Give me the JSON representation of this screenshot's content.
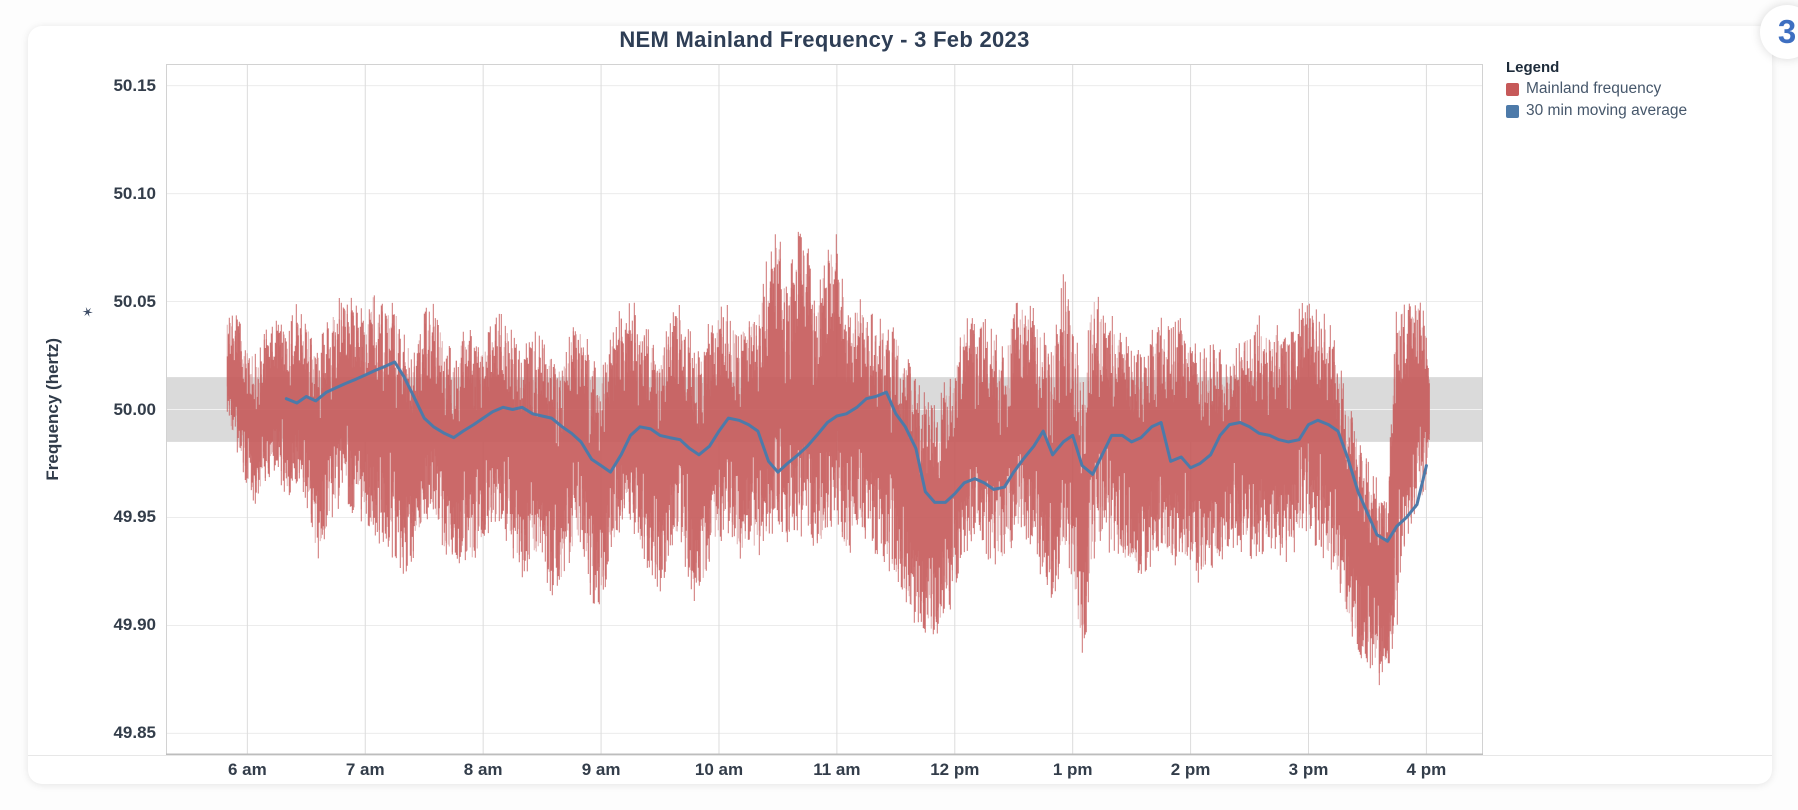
{
  "page": {
    "badge_count": "3"
  },
  "chart_data": {
    "type": "line",
    "title": "NEM Mainland Frequency - 3 Feb 2023",
    "ylabel": "Frequency (hertz)",
    "legend_title": "Legend",
    "legend_position": "right",
    "grid": true,
    "ylim": [
      49.84,
      50.16
    ],
    "xlim_hours": [
      5.31,
      16.48
    ],
    "y_ticks": [
      {
        "label": "50.15",
        "value": 50.15
      },
      {
        "label": "50.10",
        "value": 50.1
      },
      {
        "label": "50.05",
        "value": 50.05
      },
      {
        "label": "50.00",
        "value": 50.0
      },
      {
        "label": "49.95",
        "value": 49.95
      },
      {
        "label": "49.90",
        "value": 49.9
      },
      {
        "label": "49.85",
        "value": 49.85
      }
    ],
    "x_ticks": [
      {
        "label": "6 am",
        "hour": 6
      },
      {
        "label": "7 am",
        "hour": 7
      },
      {
        "label": "8 am",
        "hour": 8
      },
      {
        "label": "9 am",
        "hour": 9
      },
      {
        "label": "10 am",
        "hour": 10
      },
      {
        "label": "11 am",
        "hour": 11
      },
      {
        "label": "12 pm",
        "hour": 12
      },
      {
        "label": "1 pm",
        "hour": 13
      },
      {
        "label": "2 pm",
        "hour": 14
      },
      {
        "label": "3 pm",
        "hour": 15
      },
      {
        "label": "4 pm",
        "hour": 16
      }
    ],
    "reference_band": {
      "y_from": 49.985,
      "y_to": 50.015,
      "color": "#dadada"
    },
    "series": [
      {
        "name": "Mainland frequency",
        "color": "#c65959",
        "style": "noisy-band",
        "sampling": "5-minute envelope triples [hour, max_hz, min_hz]",
        "envelope": [
          [
            5.83,
            50.042,
            49.998
          ],
          [
            5.92,
            50.046,
            49.975
          ],
          [
            6.0,
            50.035,
            49.962
          ],
          [
            6.08,
            50.028,
            49.955
          ],
          [
            6.17,
            50.04,
            49.962
          ],
          [
            6.25,
            50.043,
            49.97
          ],
          [
            6.33,
            50.038,
            49.958
          ],
          [
            6.42,
            50.05,
            49.965
          ],
          [
            6.5,
            50.046,
            49.955
          ],
          [
            6.58,
            50.03,
            49.928
          ],
          [
            6.67,
            50.042,
            49.94
          ],
          [
            6.75,
            50.05,
            49.952
          ],
          [
            6.83,
            50.058,
            49.958
          ],
          [
            6.92,
            50.05,
            49.945
          ],
          [
            7.0,
            50.048,
            49.95
          ],
          [
            7.08,
            50.062,
            49.938
          ],
          [
            7.17,
            50.048,
            49.932
          ],
          [
            7.25,
            50.055,
            49.928
          ],
          [
            7.33,
            50.038,
            49.922
          ],
          [
            7.42,
            50.03,
            49.93
          ],
          [
            7.5,
            50.045,
            49.945
          ],
          [
            7.58,
            50.056,
            49.95
          ],
          [
            7.67,
            50.035,
            49.93
          ],
          [
            7.75,
            50.028,
            49.92
          ],
          [
            7.83,
            50.042,
            49.93
          ],
          [
            7.92,
            50.035,
            49.925
          ],
          [
            8.0,
            50.03,
            49.938
          ],
          [
            8.08,
            50.042,
            49.945
          ],
          [
            8.17,
            50.048,
            49.94
          ],
          [
            8.25,
            50.036,
            49.928
          ],
          [
            8.33,
            50.028,
            49.92
          ],
          [
            8.42,
            50.035,
            49.93
          ],
          [
            8.5,
            50.04,
            49.925
          ],
          [
            8.58,
            50.028,
            49.912
          ],
          [
            8.67,
            50.022,
            49.916
          ],
          [
            8.75,
            50.048,
            49.93
          ],
          [
            8.83,
            50.042,
            49.938
          ],
          [
            8.92,
            50.028,
            49.91
          ],
          [
            9.0,
            50.018,
            49.907
          ],
          [
            9.08,
            50.034,
            49.93
          ],
          [
            9.17,
            50.048,
            49.942
          ],
          [
            9.25,
            50.052,
            49.946
          ],
          [
            9.33,
            50.046,
            49.932
          ],
          [
            9.42,
            50.038,
            49.922
          ],
          [
            9.5,
            50.028,
            49.915
          ],
          [
            9.58,
            50.042,
            49.928
          ],
          [
            9.67,
            50.051,
            49.938
          ],
          [
            9.75,
            50.038,
            49.918
          ],
          [
            9.83,
            50.028,
            49.902
          ],
          [
            9.92,
            50.042,
            49.928
          ],
          [
            10.0,
            50.048,
            49.938
          ],
          [
            10.08,
            50.052,
            49.942
          ],
          [
            10.17,
            50.04,
            49.928
          ],
          [
            10.25,
            50.044,
            49.934
          ],
          [
            10.33,
            50.048,
            49.928
          ],
          [
            10.42,
            50.074,
            49.938
          ],
          [
            10.5,
            50.085,
            49.948
          ],
          [
            10.58,
            50.058,
            49.932
          ],
          [
            10.67,
            50.087,
            49.938
          ],
          [
            10.75,
            50.078,
            49.944
          ],
          [
            10.83,
            50.052,
            49.928
          ],
          [
            10.92,
            50.078,
            49.938
          ],
          [
            11.0,
            50.082,
            49.948
          ],
          [
            11.08,
            50.048,
            49.928
          ],
          [
            11.17,
            50.053,
            49.942
          ],
          [
            11.25,
            50.048,
            49.938
          ],
          [
            11.33,
            50.044,
            49.932
          ],
          [
            11.42,
            50.04,
            49.928
          ],
          [
            11.5,
            50.041,
            49.918
          ],
          [
            11.58,
            50.028,
            49.908
          ],
          [
            11.67,
            50.018,
            49.898
          ],
          [
            11.75,
            50.008,
            49.893
          ],
          [
            11.83,
            50.002,
            49.891
          ],
          [
            11.92,
            50.014,
            49.9
          ],
          [
            12.0,
            50.028,
            49.914
          ],
          [
            12.08,
            50.042,
            49.928
          ],
          [
            12.17,
            50.048,
            49.938
          ],
          [
            12.25,
            50.044,
            49.932
          ],
          [
            12.33,
            50.038,
            49.928
          ],
          [
            12.42,
            50.032,
            49.922
          ],
          [
            12.5,
            50.048,
            49.938
          ],
          [
            12.58,
            50.053,
            49.942
          ],
          [
            12.67,
            50.048,
            49.932
          ],
          [
            12.75,
            50.038,
            49.918
          ],
          [
            12.83,
            50.032,
            49.909
          ],
          [
            12.92,
            50.063,
            49.928
          ],
          [
            13.0,
            50.048,
            49.918
          ],
          [
            13.08,
            50.015,
            49.872
          ],
          [
            13.17,
            50.058,
            49.928
          ],
          [
            13.25,
            50.052,
            49.938
          ],
          [
            13.33,
            50.044,
            49.932
          ],
          [
            13.42,
            50.038,
            49.928
          ],
          [
            13.5,
            50.032,
            49.92
          ],
          [
            13.58,
            50.028,
            49.921
          ],
          [
            13.67,
            50.038,
            49.928
          ],
          [
            13.75,
            50.044,
            49.932
          ],
          [
            13.83,
            50.038,
            49.928
          ],
          [
            13.92,
            50.045,
            49.924
          ],
          [
            14.0,
            50.038,
            49.928
          ],
          [
            14.08,
            50.028,
            49.918
          ],
          [
            14.17,
            50.033,
            49.926
          ],
          [
            14.25,
            50.028,
            49.922
          ],
          [
            14.33,
            50.03,
            49.938
          ],
          [
            14.42,
            50.034,
            49.932
          ],
          [
            14.5,
            50.04,
            49.928
          ],
          [
            14.58,
            50.044,
            49.932
          ],
          [
            14.67,
            50.04,
            49.934
          ],
          [
            14.75,
            50.044,
            49.932
          ],
          [
            14.83,
            50.038,
            49.928
          ],
          [
            14.92,
            50.048,
            49.938
          ],
          [
            15.0,
            50.053,
            49.942
          ],
          [
            15.08,
            50.048,
            49.932
          ],
          [
            15.17,
            50.043,
            49.928
          ],
          [
            15.25,
            50.028,
            49.918
          ],
          [
            15.33,
            50.008,
            49.898
          ],
          [
            15.42,
            49.993,
            49.888
          ],
          [
            15.5,
            49.978,
            49.878
          ],
          [
            15.58,
            49.968,
            49.871
          ],
          [
            15.67,
            49.958,
            49.874
          ],
          [
            15.75,
            50.058,
            49.898
          ],
          [
            15.83,
            50.048,
            49.938
          ],
          [
            15.92,
            50.053,
            49.948
          ],
          [
            16.0,
            50.046,
            49.958
          ],
          [
            16.03,
            50.02,
            49.985
          ]
        ]
      },
      {
        "name": "30 min moving average",
        "color": "#4d7aa9",
        "style": "line",
        "points": [
          [
            6.33,
            50.005
          ],
          [
            6.42,
            50.003
          ],
          [
            6.5,
            50.006
          ],
          [
            6.58,
            50.004
          ],
          [
            6.67,
            50.008
          ],
          [
            6.75,
            50.01
          ],
          [
            6.83,
            50.012
          ],
          [
            6.92,
            50.014
          ],
          [
            7.0,
            50.016
          ],
          [
            7.08,
            50.018
          ],
          [
            7.17,
            50.02
          ],
          [
            7.25,
            50.022
          ],
          [
            7.33,
            50.015
          ],
          [
            7.42,
            50.005
          ],
          [
            7.5,
            49.996
          ],
          [
            7.58,
            49.992
          ],
          [
            7.67,
            49.989
          ],
          [
            7.75,
            49.987
          ],
          [
            7.83,
            49.99
          ],
          [
            7.92,
            49.993
          ],
          [
            8.0,
            49.996
          ],
          [
            8.08,
            49.999
          ],
          [
            8.17,
            50.001
          ],
          [
            8.25,
            50.0
          ],
          [
            8.33,
            50.001
          ],
          [
            8.42,
            49.998
          ],
          [
            8.5,
            49.997
          ],
          [
            8.58,
            49.996
          ],
          [
            8.67,
            49.992
          ],
          [
            8.75,
            49.989
          ],
          [
            8.83,
            49.985
          ],
          [
            8.92,
            49.977
          ],
          [
            9.0,
            49.974
          ],
          [
            9.08,
            49.971
          ],
          [
            9.17,
            49.979
          ],
          [
            9.25,
            49.988
          ],
          [
            9.33,
            49.992
          ],
          [
            9.42,
            49.991
          ],
          [
            9.5,
            49.988
          ],
          [
            9.58,
            49.987
          ],
          [
            9.67,
            49.986
          ],
          [
            9.75,
            49.982
          ],
          [
            9.83,
            49.979
          ],
          [
            9.92,
            49.983
          ],
          [
            10.0,
            49.99
          ],
          [
            10.08,
            49.996
          ],
          [
            10.17,
            49.995
          ],
          [
            10.25,
            49.993
          ],
          [
            10.33,
            49.99
          ],
          [
            10.42,
            49.976
          ],
          [
            10.5,
            49.971
          ],
          [
            10.58,
            49.975
          ],
          [
            10.67,
            49.979
          ],
          [
            10.75,
            49.983
          ],
          [
            10.83,
            49.988
          ],
          [
            10.92,
            49.994
          ],
          [
            11.0,
            49.997
          ],
          [
            11.08,
            49.998
          ],
          [
            11.17,
            50.001
          ],
          [
            11.25,
            50.005
          ],
          [
            11.33,
            50.006
          ],
          [
            11.42,
            50.008
          ],
          [
            11.5,
            49.998
          ],
          [
            11.58,
            49.992
          ],
          [
            11.67,
            49.982
          ],
          [
            11.75,
            49.962
          ],
          [
            11.83,
            49.957
          ],
          [
            11.92,
            49.957
          ],
          [
            12.0,
            49.961
          ],
          [
            12.08,
            49.966
          ],
          [
            12.17,
            49.968
          ],
          [
            12.25,
            49.966
          ],
          [
            12.33,
            49.963
          ],
          [
            12.42,
            49.964
          ],
          [
            12.5,
            49.971
          ],
          [
            12.58,
            49.977
          ],
          [
            12.67,
            49.983
          ],
          [
            12.75,
            49.99
          ],
          [
            12.83,
            49.979
          ],
          [
            12.92,
            49.985
          ],
          [
            13.0,
            49.988
          ],
          [
            13.08,
            49.974
          ],
          [
            13.17,
            49.97
          ],
          [
            13.25,
            49.979
          ],
          [
            13.33,
            49.988
          ],
          [
            13.42,
            49.988
          ],
          [
            13.5,
            49.985
          ],
          [
            13.58,
            49.987
          ],
          [
            13.67,
            49.992
          ],
          [
            13.75,
            49.994
          ],
          [
            13.83,
            49.976
          ],
          [
            13.92,
            49.978
          ],
          [
            14.0,
            49.973
          ],
          [
            14.08,
            49.975
          ],
          [
            14.17,
            49.979
          ],
          [
            14.25,
            49.988
          ],
          [
            14.33,
            49.993
          ],
          [
            14.42,
            49.994
          ],
          [
            14.5,
            49.992
          ],
          [
            14.58,
            49.989
          ],
          [
            14.67,
            49.988
          ],
          [
            14.75,
            49.986
          ],
          [
            14.83,
            49.985
          ],
          [
            14.92,
            49.986
          ],
          [
            15.0,
            49.993
          ],
          [
            15.08,
            49.995
          ],
          [
            15.17,
            49.993
          ],
          [
            15.25,
            49.99
          ],
          [
            15.33,
            49.978
          ],
          [
            15.42,
            49.962
          ],
          [
            15.5,
            49.952
          ],
          [
            15.58,
            49.942
          ],
          [
            15.67,
            49.939
          ],
          [
            15.75,
            49.946
          ],
          [
            15.83,
            49.95
          ],
          [
            15.92,
            49.956
          ],
          [
            16.0,
            49.974
          ]
        ]
      }
    ]
  }
}
